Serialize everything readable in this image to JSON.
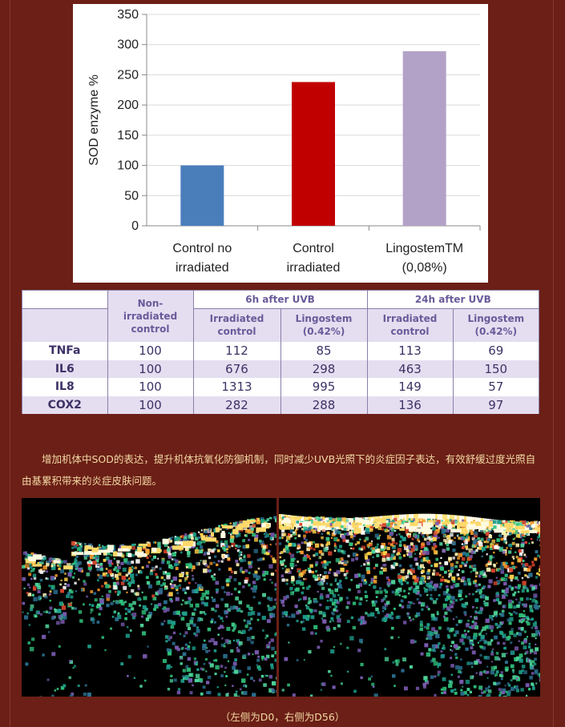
{
  "chart_data": {
    "type": "bar",
    "categories": [
      "Control no irradiated",
      "Control irradiated",
      "LingostemTM (0,08%)"
    ],
    "category_lines": [
      [
        "Control no",
        "irradiated"
      ],
      [
        "Control",
        "irradiated"
      ],
      [
        "LingostemTM",
        "(0,08%)"
      ]
    ],
    "values": [
      100,
      238,
      289
    ],
    "colors": [
      "#4a7ebb",
      "#c00000",
      "#b3a2c7"
    ],
    "title": "",
    "xlabel": "",
    "ylabel": "SOD enzyme %",
    "ylim": [
      0,
      350
    ],
    "yticks": [
      0,
      50,
      100,
      150,
      200,
      250,
      300,
      350
    ],
    "grid": true
  },
  "table": {
    "group_headers": {
      "non_irradiated": "Non-irradiated control",
      "h6": "6h after UVB",
      "h24": "24h after UVB"
    },
    "sub_headers": {
      "irradiated_control": "Irradiated control",
      "lingostem": "Lingostem (0.42%)"
    },
    "rows": [
      {
        "label": "TNFa",
        "values": [
          100,
          112,
          85,
          113,
          69
        ]
      },
      {
        "label": "IL6",
        "values": [
          100,
          676,
          298,
          463,
          150
        ]
      },
      {
        "label": "IL8",
        "values": [
          100,
          1313,
          995,
          149,
          57
        ]
      },
      {
        "label": "COX2",
        "values": [
          100,
          282,
          288,
          136,
          97
        ]
      }
    ]
  },
  "caption": "增加机体中SOD的表达，提升机体抗氧化防御机制，同时减少UVB光照下的炎症因子表达，有效舒缓过度光照自由基累积带来的炎症皮肤问题。",
  "footnote": "（左侧为D0，右侧为D56）"
}
